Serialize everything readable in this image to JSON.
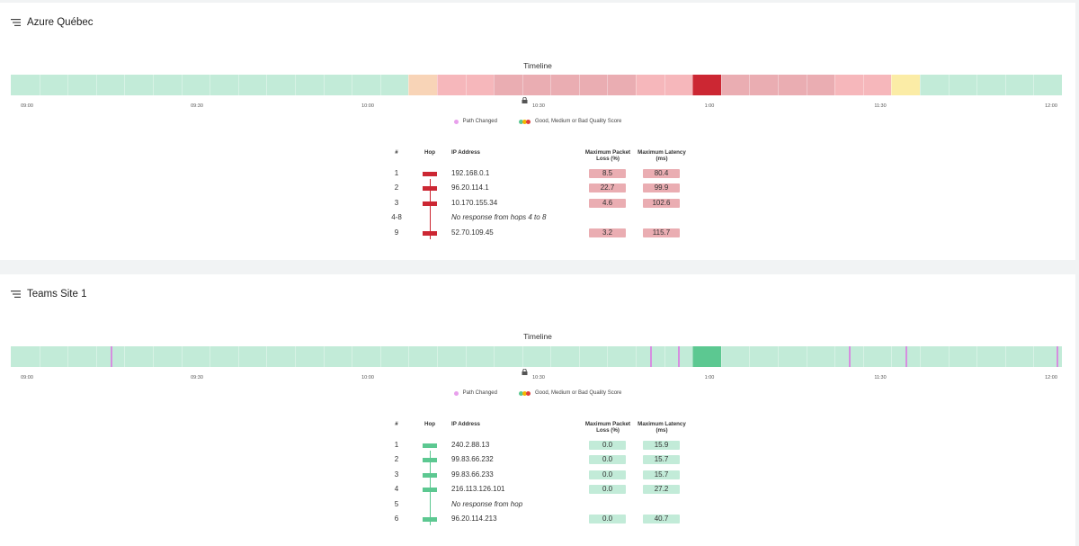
{
  "colors": {
    "good": "#c2ebd8",
    "medium_yellow": "#fbeca6",
    "peach": "#f8d4b7",
    "pink": "#f6b7bb",
    "rose": "#eaadb2",
    "bad": "#cc2733",
    "good_strong": "#5cc891",
    "path_changed": "#d68ee0",
    "pill_bad": "#eaadb2",
    "pill_good": "#c2ebd8"
  },
  "panels": [
    {
      "title": "Azure Québec",
      "timeline_label": "Timeline",
      "timeline_segments": [
        {
          "span": [
            0,
            12
          ],
          "color": "good"
        },
        {
          "span": [
            12,
            14
          ],
          "color": "good"
        },
        {
          "span": [
            14,
            15
          ],
          "color": "peach"
        },
        {
          "span": [
            15,
            17
          ],
          "color": "pink"
        },
        {
          "span": [
            17,
            22
          ],
          "color": "rose"
        },
        {
          "span": [
            22,
            24
          ],
          "color": "pink"
        },
        {
          "span": [
            24,
            25
          ],
          "color": "bad"
        },
        {
          "span": [
            25,
            29
          ],
          "color": "rose"
        },
        {
          "span": [
            29,
            31
          ],
          "color": "pink"
        },
        {
          "span": [
            31,
            32
          ],
          "color": "medium_yellow"
        },
        {
          "span": [
            32,
            37
          ],
          "color": "good"
        }
      ],
      "path_changes": [],
      "ticks": [
        "09:00",
        "09:30",
        "10:00",
        "10:30",
        "1:00",
        "11:30",
        "12:00"
      ],
      "legend": {
        "path_changed": "Path Changed",
        "quality": "Good, Medium or Bad Quality Score"
      },
      "table": {
        "headers": {
          "num": "#",
          "hop": "Hop",
          "ip": "IP Address",
          "loss": "Maximum Packet Loss (%)",
          "latency": "Maximum Latency (ms)"
        },
        "hop_color": "bad",
        "rows": [
          {
            "num": "1",
            "ip": "192.168.0.1",
            "loss": "8.5",
            "latency": "80.4",
            "pill": "pill_bad"
          },
          {
            "num": "2",
            "ip": "96.20.114.1",
            "loss": "22.7",
            "latency": "99.9",
            "pill": "pill_bad"
          },
          {
            "num": "3",
            "ip": "10.170.155.34",
            "loss": "4.6",
            "latency": "102.6",
            "pill": "pill_bad"
          },
          {
            "num": "4-8",
            "ip": "No response from hops 4 to 8",
            "no_response": true
          },
          {
            "num": "9",
            "ip": "52.70.109.45",
            "loss": "3.2",
            "latency": "115.7",
            "pill": "pill_bad"
          }
        ]
      }
    },
    {
      "title": "Teams Site 1",
      "timeline_label": "Timeline",
      "timeline_segments": [
        {
          "span": [
            0,
            24
          ],
          "color": "good"
        },
        {
          "span": [
            24,
            25
          ],
          "color": "good_strong"
        },
        {
          "span": [
            25,
            37
          ],
          "color": "good"
        }
      ],
      "path_changes": [
        3.5,
        22.5,
        23.5,
        29.5,
        31.5,
        36.8
      ],
      "ticks": [
        "09:00",
        "09:30",
        "10:00",
        "10:30",
        "1:00",
        "11:30",
        "12:00"
      ],
      "legend": {
        "path_changed": "Path Changed",
        "quality": "Good, Medium or Bad Quality Score"
      },
      "table": {
        "headers": {
          "num": "#",
          "hop": "Hop",
          "ip": "IP Address",
          "loss": "Maximum Packet Loss (%)",
          "latency": "Maximum Latency (ms)"
        },
        "hop_color": "good_strong",
        "rows": [
          {
            "num": "1",
            "ip": "240.2.88.13",
            "loss": "0.0",
            "latency": "15.9",
            "pill": "pill_good"
          },
          {
            "num": "2",
            "ip": "99.83.66.232",
            "loss": "0.0",
            "latency": "15.7",
            "pill": "pill_good"
          },
          {
            "num": "3",
            "ip": "99.83.66.233",
            "loss": "0.0",
            "latency": "15.7",
            "pill": "pill_good"
          },
          {
            "num": "4",
            "ip": "216.113.126.101",
            "loss": "0.0",
            "latency": "27.2",
            "pill": "pill_good"
          },
          {
            "num": "5",
            "ip": "No response from hop",
            "no_response": true
          },
          {
            "num": "6",
            "ip": "96.20.114.213",
            "loss": "0.0",
            "latency": "40.7",
            "pill": "pill_good"
          }
        ]
      }
    }
  ]
}
